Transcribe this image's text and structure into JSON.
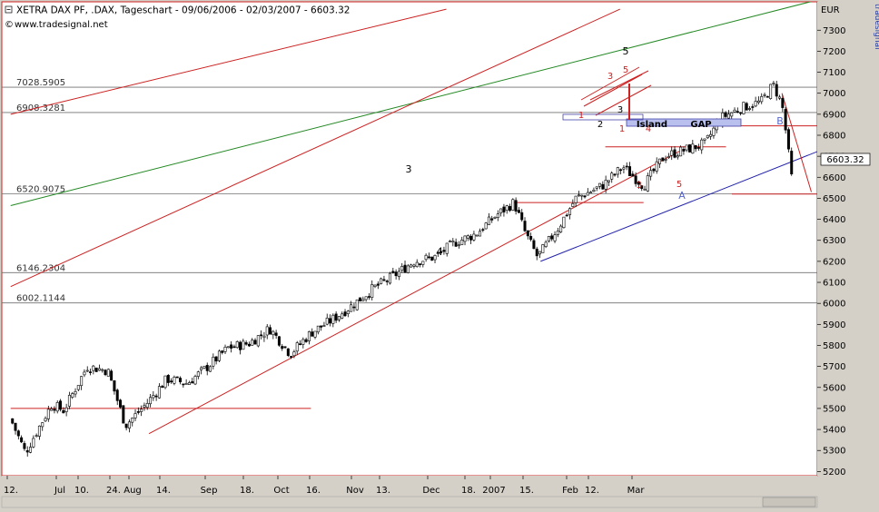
{
  "header": {
    "title": "XETRA DAX PF, .DAX, Tageschart - 09/06/2006 - 02/03/2007 - 6603.32",
    "source": "www.tradesignal.net"
  },
  "right_axis": {
    "unit": "EUR",
    "vertical_label": "tradesignal",
    "last_price": "6603.32"
  },
  "chart_data": {
    "type": "candlestick",
    "title": "XETRA DAX PF, .DAX, Tageschart - 09/06/2006 - 02/03/2007 - 6603.32",
    "ylabel": "EUR",
    "ylim": [
      5200,
      7400
    ],
    "y_ticks": [
      5200,
      5300,
      5400,
      5500,
      5600,
      5700,
      5800,
      5900,
      6000,
      6100,
      6200,
      6300,
      6400,
      6500,
      6600,
      6700,
      6800,
      6900,
      7000,
      7100,
      7200,
      7300
    ],
    "x_ticks": [
      "12.",
      "Jul",
      "10.",
      "24.",
      "Aug",
      "14.",
      "Sep",
      "18.",
      "Oct",
      "16.",
      "Nov",
      "13.",
      "Dec",
      "18.",
      "2007",
      "15.",
      "Feb",
      "12.",
      "Mar"
    ],
    "grid": false,
    "levels": [
      {
        "value": 7028.5905,
        "label": "7028.5905"
      },
      {
        "value": 6908.3281,
        "label": "6908.3281"
      },
      {
        "value": 6520.9075,
        "label": "6520.9075"
      },
      {
        "value": 6146.2304,
        "label": "6146.2304"
      },
      {
        "value": 6002.1144,
        "label": "6002.1144"
      }
    ],
    "close_path": [
      {
        "date": "2006-06-09",
        "close": 5450
      },
      {
        "date": "2006-06-14",
        "close": 5290
      },
      {
        "date": "2006-06-19",
        "close": 5420
      },
      {
        "date": "2006-06-23",
        "close": 5520
      },
      {
        "date": "2006-06-27",
        "close": 5490
      },
      {
        "date": "2006-07-05",
        "close": 5700
      },
      {
        "date": "2006-07-12",
        "close": 5680
      },
      {
        "date": "2006-07-18",
        "close": 5420
      },
      {
        "date": "2006-07-25",
        "close": 5520
      },
      {
        "date": "2006-08-01",
        "close": 5640
      },
      {
        "date": "2006-08-08",
        "close": 5620
      },
      {
        "date": "2006-08-15",
        "close": 5700
      },
      {
        "date": "2006-08-22",
        "close": 5790
      },
      {
        "date": "2006-08-29",
        "close": 5810
      },
      {
        "date": "2006-09-05",
        "close": 5880
      },
      {
        "date": "2006-09-12",
        "close": 5760
      },
      {
        "date": "2006-09-19",
        "close": 5860
      },
      {
        "date": "2006-09-26",
        "close": 5920
      },
      {
        "date": "2006-10-03",
        "close": 5990
      },
      {
        "date": "2006-10-10",
        "close": 6070
      },
      {
        "date": "2006-10-17",
        "close": 6130
      },
      {
        "date": "2006-10-24",
        "close": 6200
      },
      {
        "date": "2006-10-31",
        "close": 6220
      },
      {
        "date": "2006-11-07",
        "close": 6290
      },
      {
        "date": "2006-11-14",
        "close": 6330
      },
      {
        "date": "2006-11-21",
        "close": 6420
      },
      {
        "date": "2006-11-27",
        "close": 6480
      },
      {
        "date": "2006-12-01",
        "close": 6330
      },
      {
        "date": "2006-12-05",
        "close": 6220
      },
      {
        "date": "2006-12-12",
        "close": 6360
      },
      {
        "date": "2006-12-18",
        "close": 6500
      },
      {
        "date": "2006-12-27",
        "close": 6560
      },
      {
        "date": "2007-01-03",
        "close": 6650
      },
      {
        "date": "2007-01-10",
        "close": 6560
      },
      {
        "date": "2007-01-17",
        "close": 6700
      },
      {
        "date": "2007-01-24",
        "close": 6730
      },
      {
        "date": "2007-01-31",
        "close": 6760
      },
      {
        "date": "2007-02-05",
        "close": 6880
      },
      {
        "date": "2007-02-12",
        "close": 6930
      },
      {
        "date": "2007-02-19",
        "close": 6960
      },
      {
        "date": "2007-02-23",
        "close": 7040
      },
      {
        "date": "2007-02-26",
        "close": 6950
      },
      {
        "date": "2007-02-28",
        "close": 6750
      },
      {
        "date": "2007-03-01",
        "close": 6600
      },
      {
        "date": "2007-03-02",
        "close": 6603.32
      }
    ],
    "trendlines": [
      {
        "color": "#228822",
        "from": {
          "date": "2006-06-09",
          "value": 6465
        },
        "to": {
          "date": "2007-03-09",
          "value": 7440
        }
      },
      {
        "color": "#cc2222",
        "from": {
          "date": "2006-06-09",
          "value": 6900
        },
        "to": {
          "date": "2006-11-04",
          "value": 7400
        }
      },
      {
        "color": "#cc2222",
        "from": {
          "date": "2006-06-09",
          "value": 6080
        },
        "to": {
          "date": "2007-01-02",
          "value": 7400
        }
      },
      {
        "color": "#cc2222",
        "from": {
          "date": "2006-07-26",
          "value": 5380
        },
        "to": {
          "date": "2007-01-23",
          "value": 6730
        }
      },
      {
        "color": "#2222aa",
        "from": {
          "date": "2006-12-06",
          "value": 6200
        },
        "to": {
          "date": "2007-04-02",
          "value": 6850
        }
      },
      {
        "color": "#cc2222",
        "from": {
          "date": "2006-06-09",
          "value": 5500
        },
        "to": {
          "date": "2006-09-19",
          "value": 5500
        }
      },
      {
        "color": "#cc2222",
        "from": {
          "date": "2006-11-27",
          "value": 6480
        },
        "to": {
          "date": "2007-01-10",
          "value": 6480
        }
      },
      {
        "color": "#cc2222",
        "from": {
          "date": "2006-12-28",
          "value": 6745
        },
        "to": {
          "date": "2007-02-07",
          "value": 6745
        }
      },
      {
        "color": "#cc2222",
        "from": {
          "date": "2007-01-19",
          "value": 6845
        },
        "to": {
          "date": "2007-03-31",
          "value": 6845
        }
      },
      {
        "color": "#cc2222",
        "from": {
          "date": "2007-02-09",
          "value": 6520
        },
        "to": {
          "date": "2007-03-31",
          "value": 6520
        }
      },
      {
        "color": "#cc2222",
        "from": {
          "date": "2007-02-26",
          "value": 7000
        },
        "to": {
          "date": "2007-03-08",
          "value": 6530
        }
      }
    ],
    "annotations": [
      {
        "text": "3",
        "color": "#000000"
      },
      {
        "text": "4",
        "color": "#000000"
      },
      {
        "text": "5",
        "color": "#000000"
      },
      {
        "text": "1",
        "color": "#cc2222"
      },
      {
        "text": "2",
        "color": "#000000"
      },
      {
        "text": "3",
        "color": "#cc2222"
      },
      {
        "text": "3",
        "color": "#000000"
      },
      {
        "text": "5",
        "color": "#cc2222"
      },
      {
        "text": "1",
        "color": "#cc2222"
      },
      {
        "text": "3",
        "color": "#cc2222"
      },
      {
        "text": "4",
        "color": "#cc2222"
      },
      {
        "text": "5",
        "color": "#cc2222"
      },
      {
        "text": "A",
        "color": "#5566cc"
      },
      {
        "text": "B",
        "color": "#5566cc"
      },
      {
        "text": "Island",
        "color": "#000000"
      },
      {
        "text": "GAP",
        "color": "#000000"
      }
    ]
  }
}
